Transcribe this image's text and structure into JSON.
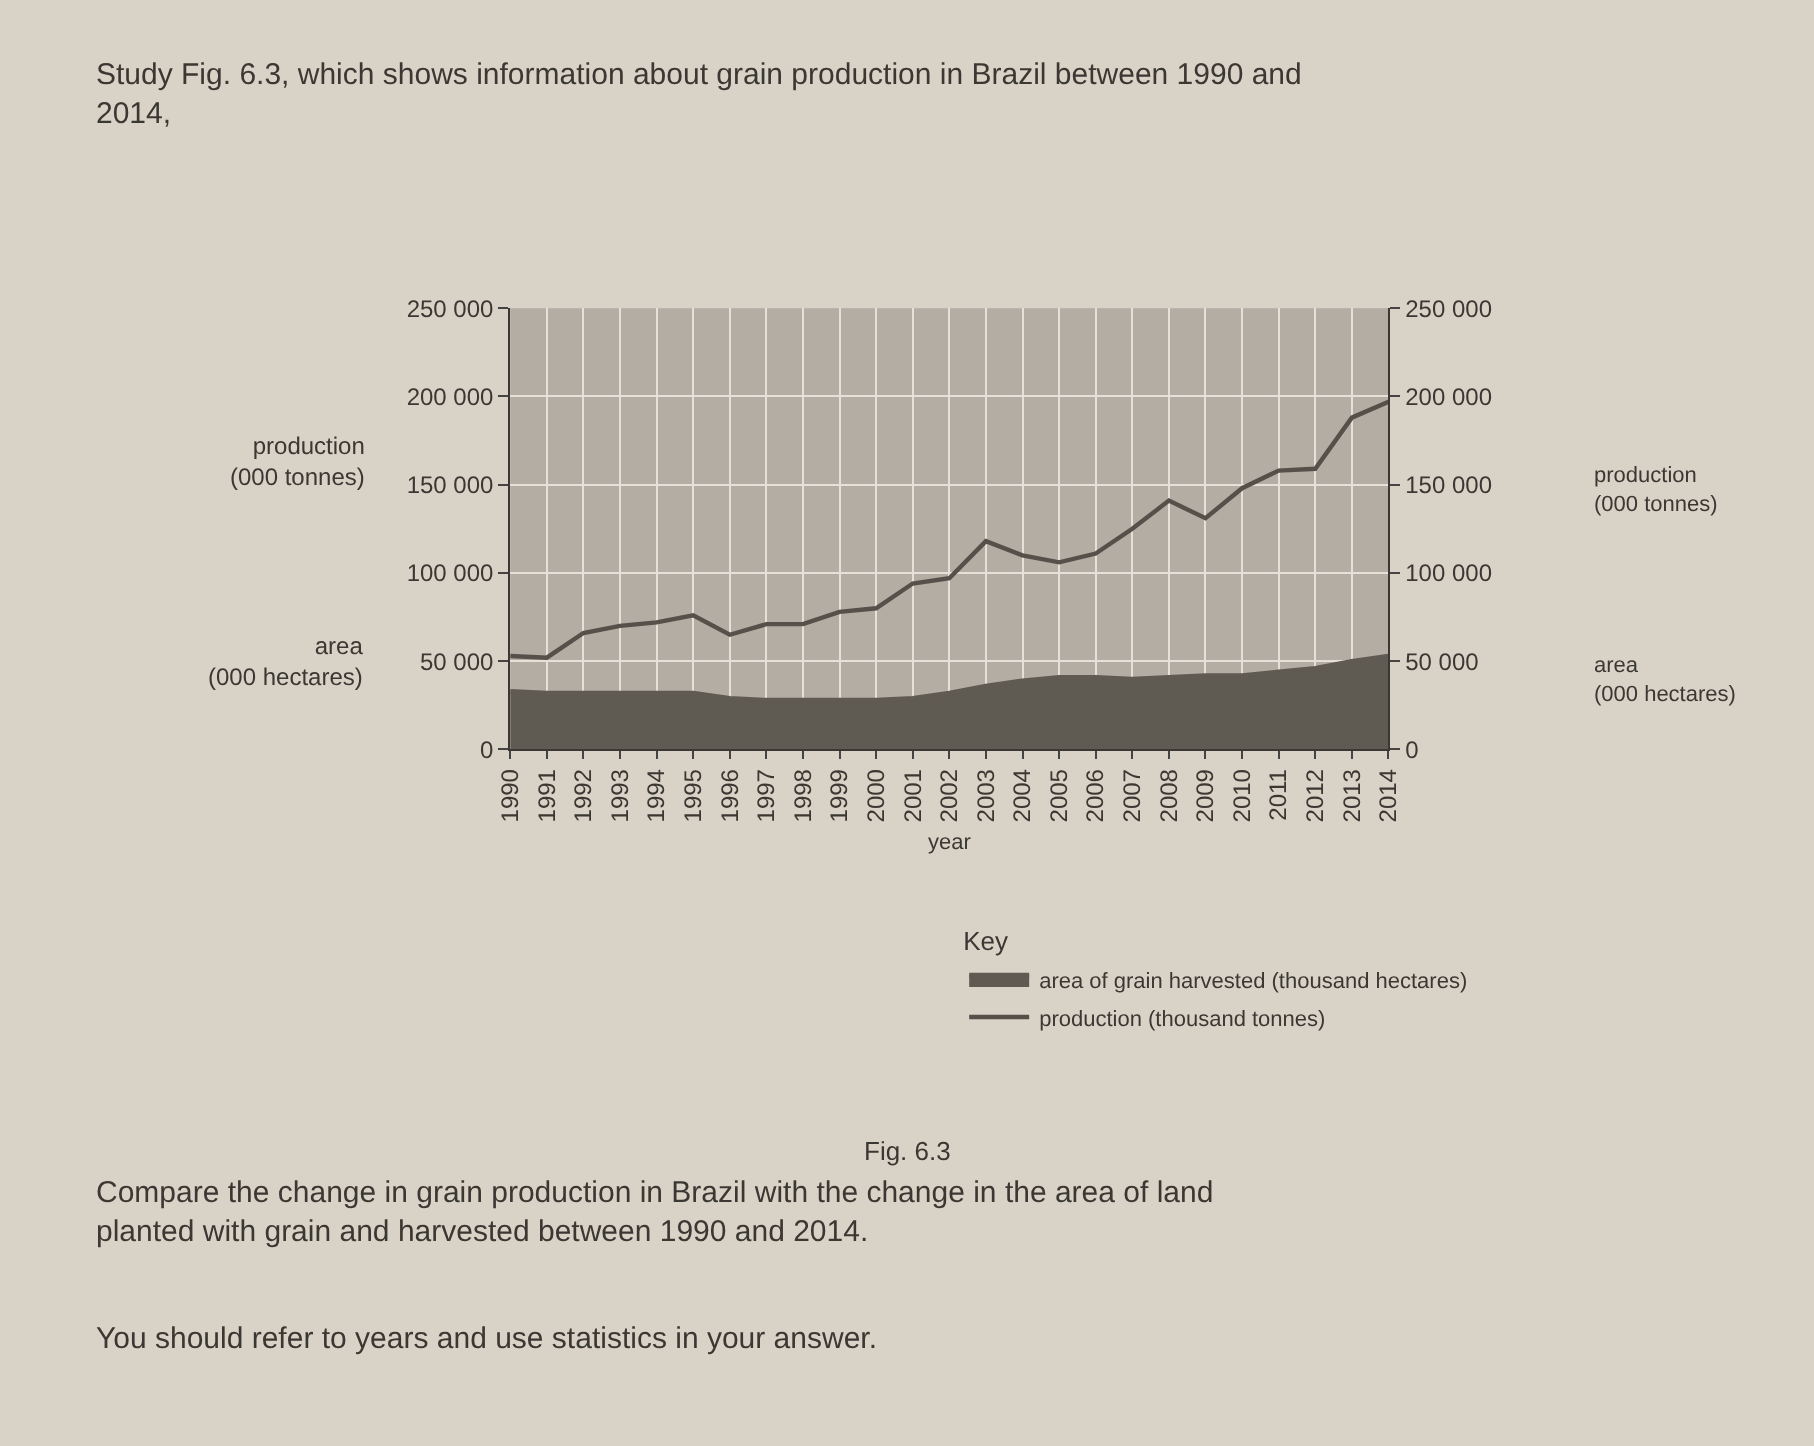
{
  "chart_data": {
    "type": "area",
    "title": "Study Fig. 6.3, which shows information about grain production in Brazil between 1990 and 2014,",
    "xlabel": "year",
    "ylabel": "production\n(000 tonnes)",
    "y2label": "production\n(000 tonnes)",
    "legend_title": "Key",
    "x": [
      1990,
      1991,
      1992,
      1993,
      1994,
      1995,
      1996,
      1997,
      1998,
      1999,
      2000,
      2001,
      2002,
      2003,
      2004,
      2005,
      2006,
      2007,
      2008,
      2009,
      2010,
      2011,
      2012,
      2013,
      2014
    ],
    "series": [
      {
        "name": "area of grain harvested (thousand hectares)",
        "color": "#5f5a52",
        "values": [
          33000,
          32000,
          32000,
          32000,
          32000,
          32000,
          29000,
          28000,
          28000,
          28000,
          28000,
          29000,
          32000,
          36000,
          39000,
          41000,
          41000,
          40000,
          41000,
          42000,
          42000,
          44000,
          46000,
          50000,
          53000
        ]
      },
      {
        "name": "production (thousand tonnes)",
        "type": "line",
        "color": "#55504a",
        "values": [
          53000,
          52000,
          66000,
          70000,
          72000,
          76000,
          65000,
          71000,
          71000,
          78000,
          80000,
          94000,
          97000,
          118000,
          110000,
          106000,
          111000,
          125000,
          141000,
          131000,
          148000,
          158000,
          159000,
          188000,
          197000
        ]
      }
    ],
    "xlim": [
      1990,
      2014
    ],
    "xticks": [
      1990,
      1991,
      1992,
      1993,
      1994,
      1995,
      1996,
      1997,
      1998,
      1999,
      2000,
      2001,
      2002,
      2003,
      2004,
      2005,
      2006,
      2007,
      2008,
      2009,
      2010,
      2011,
      2012,
      2013,
      2014
    ],
    "ylim": [
      0,
      250000
    ],
    "yticks": [
      0,
      {
        "value": 50000,
        "label": "50 000"
      },
      {
        "value": 100000,
        "label": "100 000"
      },
      {
        "value": 150000,
        "label": "150 000"
      },
      {
        "value": 200000,
        "label": "200 000"
      },
      {
        "value": 250000,
        "label": "250 000"
      }
    ],
    "y2lim": [
      0,
      250000
    ],
    "y2ticks": [
      0,
      {
        "value": 50000,
        "label": "50 000"
      },
      {
        "value": 100000,
        "label": "100 000"
      },
      {
        "value": 150000,
        "label": "150 000"
      },
      {
        "value": 200000,
        "label": "200 000"
      },
      {
        "value": 250000,
        "label": "250 000"
      }
    ],
    "grid": true,
    "legend": "bottom",
    "marker": "none",
    "line_style": "solid",
    "annotations": [
      "area\n(000 hectares)",
      "area\n(000 hectares)",
      "Fig. 6.3",
      "Compare the change in grain production in Brazil with the change in the area of land planted with grain and harvested between 1990 and 2014.",
      "You should refer to years and use statistics in your answer."
    ]
  }
}
